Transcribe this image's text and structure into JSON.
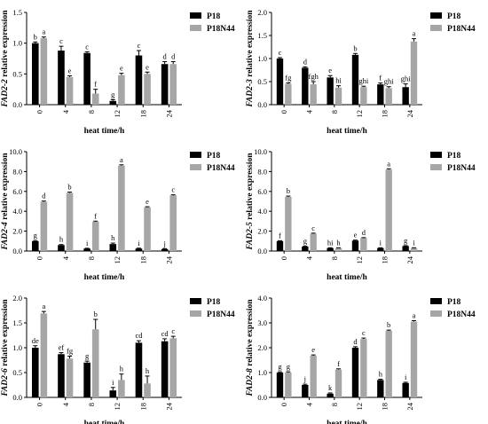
{
  "chart_data": [
    {
      "type": "bar",
      "panel": "top-left",
      "ylabel_gene": "FAD2-2",
      "ylabel_rest": " relative expression",
      "xlabel": "heat time/h",
      "categories": [
        "0",
        "4",
        "8",
        "12",
        "18",
        "24"
      ],
      "ylim": [
        0,
        1.5
      ],
      "yticks": [
        "0.0",
        "0.5",
        "1.0",
        "1.5"
      ],
      "series": [
        {
          "name": "P18",
          "color": "#000000",
          "values": [
            1.0,
            0.88,
            0.84,
            0.06,
            0.8,
            0.66
          ],
          "errors": [
            0.02,
            0.07,
            0.02,
            0.02,
            0.08,
            0.04
          ],
          "labels": [
            "b",
            "c",
            "c",
            "g",
            "c",
            "d"
          ]
        },
        {
          "name": "P18N44",
          "color": "#a6a6a6",
          "values": [
            1.08,
            0.45,
            0.18,
            0.48,
            0.5,
            0.66
          ],
          "errors": [
            0.02,
            0.02,
            0.07,
            0.03,
            0.03,
            0.04
          ],
          "labels": [
            "a",
            "e",
            "f",
            "e",
            "e",
            "d"
          ]
        }
      ],
      "legend": [
        "P18",
        "P18N44"
      ]
    },
    {
      "type": "bar",
      "panel": "top-right",
      "ylabel_gene": "FAD2-3",
      "ylabel_rest": " relative expression",
      "xlabel": "heat time/h",
      "categories": [
        "0",
        "4",
        "8",
        "12",
        "18",
        "24"
      ],
      "ylim": [
        0,
        2.0
      ],
      "yticks": [
        "0.0",
        "0.5",
        "1.0",
        "1.5",
        "2.0"
      ],
      "series": [
        {
          "name": "P18",
          "color": "#000000",
          "values": [
            1.0,
            0.8,
            0.59,
            1.08,
            0.44,
            0.38
          ],
          "errors": [
            0.02,
            0.02,
            0.04,
            0.03,
            0.03,
            0.07
          ],
          "labels": [
            "c",
            "d",
            "e",
            "b",
            "f",
            "ghi"
          ]
        },
        {
          "name": "P18N44",
          "color": "#a6a6a6",
          "values": [
            0.45,
            0.44,
            0.37,
            0.38,
            0.36,
            1.37
          ],
          "errors": [
            0.02,
            0.06,
            0.04,
            0.02,
            0.03,
            0.06
          ],
          "labels": [
            "fg",
            "fgh",
            "hi",
            "ghi",
            "ghi",
            "a"
          ]
        }
      ],
      "legend": [
        "P18",
        "P18N44"
      ]
    },
    {
      "type": "bar",
      "panel": "middle-left",
      "ylabel_gene": "FAD2-4",
      "ylabel_rest": " relative expression",
      "xlabel": "heat time/h",
      "categories": [
        "0",
        "4",
        "8",
        "12",
        "18",
        "24"
      ],
      "ylim": [
        0,
        10.0
      ],
      "yticks": [
        "0.0",
        "2.0",
        "4.0",
        "6.0",
        "8.0",
        "10.0"
      ],
      "series": [
        {
          "name": "P18",
          "color": "#000000",
          "values": [
            1.0,
            0.6,
            0.25,
            0.7,
            0.25,
            0.2
          ],
          "errors": [
            0.05,
            0.05,
            0.03,
            0.1,
            0.04,
            0.04
          ],
          "labels": [
            "g",
            "h",
            "i",
            "h",
            "i",
            "j"
          ]
        },
        {
          "name": "P18N44",
          "color": "#a6a6a6",
          "values": [
            4.95,
            5.85,
            2.95,
            8.6,
            4.4,
            5.6
          ],
          "errors": [
            0.08,
            0.08,
            0.06,
            0.08,
            0.06,
            0.06
          ],
          "labels": [
            "d",
            "b",
            "f",
            "a",
            "e",
            "c"
          ]
        }
      ],
      "legend": [
        "P18",
        "P18N44"
      ]
    },
    {
      "type": "bar",
      "panel": "middle-right",
      "ylabel_gene": "FAD2-5",
      "ylabel_rest": " relative expression",
      "xlabel": "heat time/h",
      "categories": [
        "0",
        "4",
        "8",
        "12",
        "18",
        "24"
      ],
      "ylim": [
        0,
        10.0
      ],
      "yticks": [
        "0.0",
        "2.0",
        "4.0",
        "6.0",
        "8.0",
        "10.0"
      ],
      "series": [
        {
          "name": "P18",
          "color": "#000000",
          "values": [
            1.0,
            0.45,
            0.3,
            1.05,
            0.3,
            0.5
          ],
          "errors": [
            0.04,
            0.03,
            0.03,
            0.05,
            0.03,
            0.04
          ],
          "labels": [
            "f",
            "g",
            "hi",
            "e",
            "i",
            "g"
          ]
        },
        {
          "name": "P18N44",
          "color": "#a6a6a6",
          "values": [
            5.45,
            1.75,
            0.3,
            1.3,
            8.2,
            0.3
          ],
          "errors": [
            0.08,
            0.05,
            0.03,
            0.05,
            0.08,
            0.03
          ],
          "labels": [
            "b",
            "c",
            "h",
            "d",
            "a",
            "i"
          ]
        }
      ],
      "legend": [
        "P18",
        "P18N44"
      ]
    },
    {
      "type": "bar",
      "panel": "bottom-left",
      "ylabel_gene": "FAD2-6",
      "ylabel_rest": " relative expression",
      "xlabel": "heat time/h",
      "categories": [
        "0",
        "4",
        "8",
        "12",
        "18",
        "24"
      ],
      "ylim": [
        0,
        2.0
      ],
      "yticks": [
        "0.0",
        "0.5",
        "1.0",
        "1.5",
        "2.0"
      ],
      "series": [
        {
          "name": "P18",
          "color": "#000000",
          "values": [
            1.0,
            0.87,
            0.7,
            0.14,
            1.1,
            1.13
          ],
          "errors": [
            0.04,
            0.03,
            0.03,
            0.06,
            0.04,
            0.05
          ],
          "labels": [
            "de",
            "ef",
            "g",
            "i",
            "cd",
            "cd"
          ]
        },
        {
          "name": "P18N44",
          "color": "#a6a6a6",
          "values": [
            1.69,
            0.78,
            1.37,
            0.35,
            0.28,
            1.19
          ],
          "errors": [
            0.04,
            0.05,
            0.2,
            0.12,
            0.15,
            0.04
          ],
          "labels": [
            "a",
            "fg",
            "b",
            "h",
            "h",
            "c"
          ]
        }
      ],
      "legend": [
        "P18",
        "P18N44"
      ]
    },
    {
      "type": "bar",
      "panel": "bottom-right",
      "ylabel_gene": "FAD2-8",
      "ylabel_rest": " relative expression",
      "xlabel": "heat time/h",
      "categories": [
        "0",
        "4",
        "8",
        "12",
        "18",
        "24"
      ],
      "ylim": [
        0,
        4.0
      ],
      "yticks": [
        "0.0",
        "1.0",
        "2.0",
        "3.0",
        "4.0"
      ],
      "series": [
        {
          "name": "P18",
          "color": "#000000",
          "values": [
            1.0,
            0.5,
            0.15,
            2.0,
            0.7,
            0.58
          ],
          "errors": [
            0.03,
            0.03,
            0.03,
            0.04,
            0.03,
            0.03
          ],
          "labels": [
            "g",
            "j",
            "k",
            "d",
            "h",
            "i"
          ]
        },
        {
          "name": "P18N44",
          "color": "#a6a6a6",
          "values": [
            1.0,
            1.68,
            1.12,
            2.35,
            2.68,
            3.05
          ],
          "errors": [
            0.03,
            0.03,
            0.03,
            0.04,
            0.03,
            0.04
          ],
          "labels": [
            "g",
            "e",
            "f",
            "c",
            "b",
            "a"
          ]
        }
      ],
      "legend": [
        "P18",
        "P18N44"
      ]
    }
  ]
}
